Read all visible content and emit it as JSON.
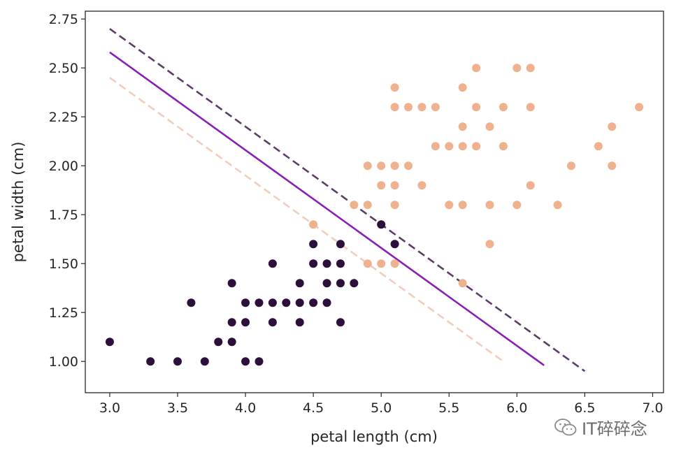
{
  "chart_data": {
    "type": "scatter",
    "xlabel": "petal length (cm)",
    "ylabel": "petal width (cm)",
    "xlim": [
      2.82,
      7.08
    ],
    "ylim": [
      0.84,
      2.79
    ],
    "xticks": [
      3.0,
      3.5,
      4.0,
      4.5,
      5.0,
      5.5,
      6.0,
      6.5,
      7.0
    ],
    "yticks": [
      1.0,
      1.25,
      1.5,
      1.75,
      2.0,
      2.25,
      2.5,
      2.75
    ],
    "xtick_labels": [
      "3.0",
      "3.5",
      "4.0",
      "4.5",
      "5.0",
      "5.5",
      "6.0",
      "6.5",
      "7.0"
    ],
    "ytick_labels": [
      "1.00",
      "1.25",
      "1.50",
      "1.75",
      "2.00",
      "2.25",
      "2.50",
      "2.75"
    ],
    "grid": false,
    "series": [
      {
        "color": "#2c0f3a",
        "points": [
          [
            3.0,
            1.1
          ],
          [
            3.3,
            1.0
          ],
          [
            3.5,
            1.0
          ],
          [
            3.6,
            1.3
          ],
          [
            3.7,
            1.0
          ],
          [
            3.8,
            1.1
          ],
          [
            3.9,
            1.1
          ],
          [
            3.9,
            1.2
          ],
          [
            3.9,
            1.4
          ],
          [
            4.0,
            1.0
          ],
          [
            4.0,
            1.2
          ],
          [
            4.0,
            1.3
          ],
          [
            4.1,
            1.0
          ],
          [
            4.1,
            1.3
          ],
          [
            4.2,
            1.2
          ],
          [
            4.2,
            1.3
          ],
          [
            4.2,
            1.5
          ],
          [
            4.3,
            1.3
          ],
          [
            4.4,
            1.2
          ],
          [
            4.4,
            1.3
          ],
          [
            4.4,
            1.4
          ],
          [
            4.5,
            1.3
          ],
          [
            4.5,
            1.5
          ],
          [
            4.5,
            1.6
          ],
          [
            4.6,
            1.3
          ],
          [
            4.6,
            1.4
          ],
          [
            4.6,
            1.5
          ],
          [
            4.7,
            1.2
          ],
          [
            4.7,
            1.4
          ],
          [
            4.7,
            1.5
          ],
          [
            4.7,
            1.6
          ],
          [
            4.8,
            1.4
          ],
          [
            5.0,
            1.7
          ],
          [
            5.1,
            1.6
          ]
        ]
      },
      {
        "color": "#efb28f",
        "points": [
          [
            4.5,
            1.7
          ],
          [
            4.8,
            1.8
          ],
          [
            4.9,
            1.5
          ],
          [
            4.9,
            1.8
          ],
          [
            4.9,
            2.0
          ],
          [
            5.0,
            1.5
          ],
          [
            5.0,
            1.9
          ],
          [
            5.0,
            2.0
          ],
          [
            5.1,
            1.5
          ],
          [
            5.1,
            1.8
          ],
          [
            5.1,
            1.9
          ],
          [
            5.1,
            2.0
          ],
          [
            5.1,
            2.3
          ],
          [
            5.1,
            2.4
          ],
          [
            5.2,
            2.0
          ],
          [
            5.2,
            2.3
          ],
          [
            5.3,
            1.9
          ],
          [
            5.3,
            2.3
          ],
          [
            5.4,
            2.1
          ],
          [
            5.4,
            2.3
          ],
          [
            5.5,
            1.8
          ],
          [
            5.5,
            2.1
          ],
          [
            5.6,
            1.4
          ],
          [
            5.6,
            1.8
          ],
          [
            5.6,
            2.1
          ],
          [
            5.6,
            2.2
          ],
          [
            5.6,
            2.4
          ],
          [
            5.7,
            2.1
          ],
          [
            5.7,
            2.3
          ],
          [
            5.7,
            2.5
          ],
          [
            5.8,
            1.6
          ],
          [
            5.8,
            1.8
          ],
          [
            5.8,
            2.2
          ],
          [
            5.9,
            2.1
          ],
          [
            5.9,
            2.3
          ],
          [
            6.0,
            1.8
          ],
          [
            6.0,
            2.5
          ],
          [
            6.1,
            1.9
          ],
          [
            6.1,
            2.3
          ],
          [
            6.1,
            2.5
          ],
          [
            6.3,
            1.8
          ],
          [
            6.4,
            2.0
          ],
          [
            6.6,
            2.1
          ],
          [
            6.7,
            2.0
          ],
          [
            6.7,
            2.2
          ],
          [
            6.9,
            2.3
          ]
        ]
      }
    ],
    "lines": [
      {
        "style": "dashed",
        "color": "#5c3d68",
        "x": [
          3.0,
          6.5
        ],
        "y": [
          2.7,
          0.95
        ]
      },
      {
        "style": "solid",
        "color": "#8a1fb5",
        "x": [
          3.0,
          6.2
        ],
        "y": [
          2.58,
          0.98
        ]
      },
      {
        "style": "dashed",
        "color": "#f1cdbd",
        "x": [
          3.0,
          5.9
        ],
        "y": [
          2.45,
          1.0
        ]
      }
    ]
  },
  "watermark": {
    "text": "IT碎碎念",
    "icon": "wechat-icon"
  }
}
